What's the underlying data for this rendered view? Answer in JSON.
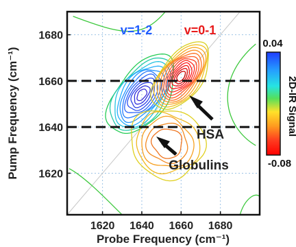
{
  "chart_data": {
    "type": "contour",
    "title": "",
    "xlabel": "Probe Frequency (cm⁻¹)",
    "ylabel": "Pump Frequency (cm⁻¹)",
    "xlim": [
      1602,
      1700
    ],
    "ylim": [
      1602,
      1690
    ],
    "xticks": [
      1620,
      1640,
      1660,
      1680
    ],
    "yticks": [
      1620,
      1640,
      1660,
      1680
    ],
    "grid": true,
    "diagonal": true,
    "horizontal_cuts": [
      1660,
      1640
    ],
    "colorbar": {
      "label": "2D-IR Signal",
      "max": 0.04,
      "min": -0.08,
      "max_label": "0.04",
      "min_label": "-0.08",
      "colors": [
        "#1f3cff",
        "#25a0ff",
        "#26e3e3",
        "#55e05a",
        "#ffe12a",
        "#ff9a1f",
        "#ff3a1f",
        "#ff0000"
      ]
    },
    "peaks": [
      {
        "name": "v=1-2",
        "color": "#1f5cff",
        "center": [
          1640,
          1654
        ],
        "sign": "positive"
      },
      {
        "name": "v=0-1",
        "color": "#e81a1a",
        "center": [
          1660,
          1662
        ],
        "sign": "negative"
      },
      {
        "name": "",
        "color": "#f0a020",
        "center": [
          1653,
          1633
        ],
        "sign": "negative"
      }
    ],
    "annotations": [
      {
        "text": "HSA",
        "target": [
          1658,
          1657
        ]
      },
      {
        "text": "Globulins",
        "target": [
          1649,
          1636
        ]
      }
    ]
  }
}
